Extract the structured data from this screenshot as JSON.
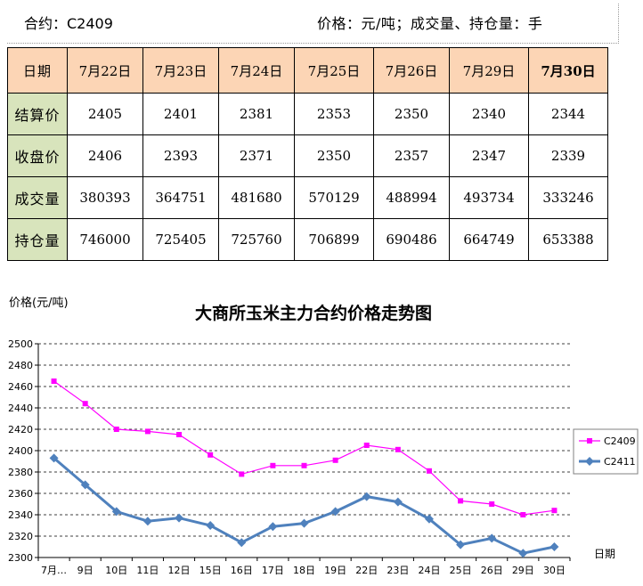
{
  "header": {
    "contract": "合约：C2409",
    "units": "价格：元/吨；成交量、持仓量：手"
  },
  "table": {
    "date_header": "日期",
    "dates": [
      "7月22日",
      "7月23日",
      "7月24日",
      "7月25日",
      "7月26日",
      "7月29日",
      "7月30日"
    ],
    "rows": [
      {
        "label": "结算价",
        "values": [
          "2405",
          "2401",
          "2381",
          "2353",
          "2350",
          "2340",
          "2344"
        ]
      },
      {
        "label": "收盘价",
        "values": [
          "2406",
          "2393",
          "2371",
          "2350",
          "2357",
          "2347",
          "2339"
        ]
      },
      {
        "label": "成交量",
        "values": [
          "380393",
          "364751",
          "481680",
          "570129",
          "488994",
          "493734",
          "333246"
        ]
      },
      {
        "label": "持仓量",
        "values": [
          "746000",
          "725405",
          "725760",
          "706899",
          "690486",
          "664749",
          "653388"
        ]
      }
    ]
  },
  "chart_data": {
    "type": "line",
    "title": "大商所玉米主力合约价格走势图",
    "ylabel": "价格(元/吨)",
    "xlabel": "日期",
    "categories": [
      "7月…",
      "9日",
      "10日",
      "11日",
      "12日",
      "15日",
      "16日",
      "17日",
      "18日",
      "19日",
      "22日",
      "23日",
      "24日",
      "25日",
      "26日",
      "29日",
      "30日"
    ],
    "ylim": [
      2300,
      2500
    ],
    "yticks": [
      2300,
      2320,
      2340,
      2360,
      2380,
      2400,
      2420,
      2440,
      2460,
      2480,
      2500
    ],
    "grid": true,
    "legend": "right",
    "series": [
      {
        "name": "C2409",
        "color": "#ff00ff",
        "marker": "square",
        "values": [
          2465,
          2444,
          2420,
          2418,
          2415,
          2396,
          2378,
          2386,
          2386,
          2391,
          2405,
          2401,
          2381,
          2353,
          2350,
          2340,
          2344
        ]
      },
      {
        "name": "C2411",
        "color": "#4f81bd",
        "marker": "diamond",
        "values": [
          2393,
          2368,
          2343,
          2334,
          2337,
          2330,
          2314,
          2329,
          2332,
          2343,
          2357,
          2352,
          2336,
          2312,
          2318,
          2304,
          2310
        ]
      }
    ]
  }
}
